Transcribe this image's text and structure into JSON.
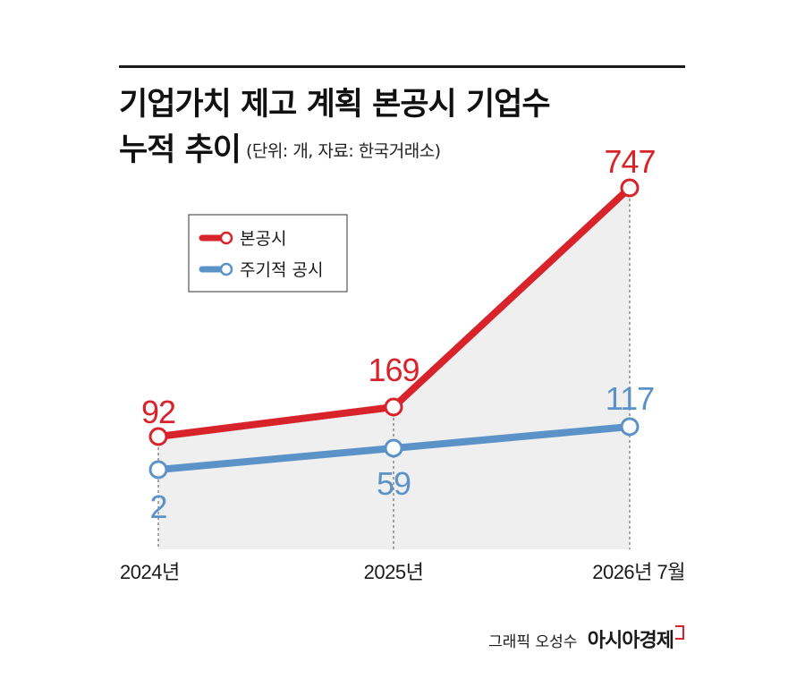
{
  "title": {
    "line1": "기업가치 제고 계획 본공시 기업수",
    "line2": "누적 추이",
    "subtitle": "(단위: 개, 자료: 한국거래소)"
  },
  "colors": {
    "main": "#d8232a",
    "periodic": "#5b93c8",
    "area": "#efefef",
    "text": "#1a1a1a"
  },
  "chart_data": {
    "type": "line",
    "categories": [
      "2024년",
      "2025년",
      "2026년 7월"
    ],
    "series": [
      {
        "name": "본공시",
        "values": [
          92,
          169,
          747
        ],
        "color": "#d8232a"
      },
      {
        "name": "주기적 공시",
        "values": [
          2,
          59,
          117
        ],
        "color": "#5b93c8"
      }
    ],
    "legend": "top-left"
  },
  "footer": {
    "credit": "그래픽 오성수",
    "brand": "아시아경제"
  }
}
